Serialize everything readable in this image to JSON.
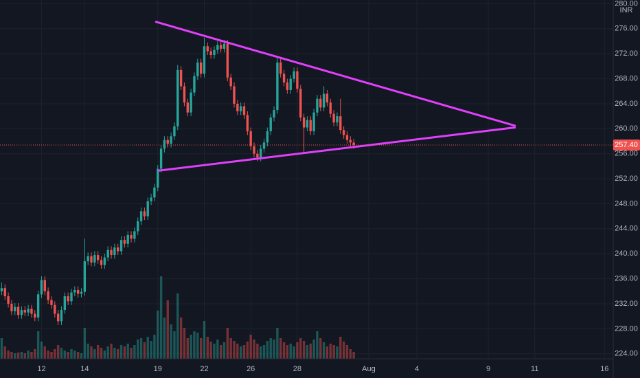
{
  "chart_data": {
    "type": "candlestick",
    "currency": "INR",
    "up_color": "#26a69a",
    "down_color": "#ef5350",
    "line_color": "#e040fb",
    "grid": true,
    "xlim": [
      -0.5,
      183.5
    ],
    "ylim": [
      223.2,
      280.6
    ],
    "xticks": [
      {
        "value": 12,
        "label": "12"
      },
      {
        "value": 25,
        "label": "14"
      },
      {
        "value": 47,
        "label": "19"
      },
      {
        "value": 61,
        "label": "22"
      },
      {
        "value": 75,
        "label": "26"
      },
      {
        "value": 89,
        "label": "28"
      },
      {
        "value": 110.5,
        "label": "Aug"
      },
      {
        "value": 125,
        "label": "4"
      },
      {
        "value": 146.5,
        "label": "9"
      },
      {
        "value": 160.5,
        "label": "11"
      },
      {
        "value": 181.5,
        "label": "16"
      }
    ],
    "yticks": [
      {
        "value": 224,
        "label": "224.00"
      },
      {
        "value": 228,
        "label": "228.00"
      },
      {
        "value": 232,
        "label": "232.00"
      },
      {
        "value": 236,
        "label": "236.00"
      },
      {
        "value": 240,
        "label": "240.00"
      },
      {
        "value": 244,
        "label": "244.00"
      },
      {
        "value": 248,
        "label": "248.00"
      },
      {
        "value": 252,
        "label": "252.00"
      },
      {
        "value": 256,
        "label": "256.00"
      },
      {
        "value": 260,
        "label": "260.00"
      },
      {
        "value": 264,
        "label": "264.00"
      },
      {
        "value": 268,
        "label": "268.00"
      },
      {
        "value": 272,
        "label": "272.00"
      },
      {
        "value": 276,
        "label": "276.00"
      },
      {
        "value": 280,
        "label": "280.00"
      }
    ],
    "last_price": {
      "value": 257.4,
      "label": "257.40"
    },
    "trendlines": [
      {
        "x": [
          46.5,
          154.5
        ],
        "y": [
          277.1,
          260.5
        ]
      },
      {
        "x": [
          47.3,
          154.5
        ],
        "y": [
          253.3,
          260.2
        ]
      }
    ],
    "x": [
      0,
      1,
      2,
      3,
      4,
      5,
      6,
      7,
      8,
      9,
      10,
      11,
      12,
      13,
      14,
      15,
      16,
      17,
      18,
      19,
      20,
      21,
      22,
      23,
      24,
      25,
      26,
      27,
      28,
      29,
      30,
      31,
      32,
      33,
      34,
      35,
      36,
      37,
      38,
      39,
      40,
      41,
      42,
      43,
      44,
      45,
      46,
      47,
      48,
      49,
      50,
      51,
      52,
      53,
      54,
      55,
      56,
      57,
      58,
      59,
      60,
      61,
      62,
      63,
      64,
      65,
      66,
      67,
      68,
      69,
      70,
      71,
      72,
      73,
      74,
      75,
      76,
      77,
      78,
      79,
      80,
      81,
      82,
      83,
      84,
      85,
      86,
      87,
      88,
      89,
      90,
      91,
      92,
      93,
      94,
      95,
      96,
      97,
      98,
      99,
      100,
      101,
      102,
      103,
      104,
      105,
      106
    ],
    "open": [
      234.0,
      234.5,
      233.2,
      232.0,
      230.8,
      231.5,
      230.2,
      231.0,
      230.6,
      231.2,
      230.4,
      229.8,
      233.5,
      235.8,
      234.0,
      232.6,
      231.8,
      230.4,
      229.2,
      231.0,
      233.2,
      232.4,
      233.8,
      234.2,
      233.6,
      233.9,
      238.8,
      239.6,
      238.6,
      239.8,
      239.0,
      238.2,
      239.4,
      240.6,
      239.8,
      241.0,
      240.4,
      242.2,
      241.6,
      243.0,
      242.4,
      243.6,
      245.2,
      246.8,
      246.0,
      248.4,
      249.0,
      250.6,
      253.6,
      256.8,
      258.2,
      257.6,
      258.8,
      260.4,
      269.4,
      266.8,
      264.2,
      262.6,
      265.8,
      268.4,
      270.6,
      268.8,
      273.2,
      272.4,
      271.8,
      272.6,
      273.4,
      272.8,
      273.6,
      268.2,
      266.8,
      264.0,
      262.8,
      263.6,
      262.2,
      259.6,
      257.2,
      256.0,
      255.4,
      256.8,
      257.8,
      259.6,
      261.8,
      263.0,
      270.6,
      268.8,
      267.4,
      266.2,
      268.0,
      269.2,
      266.4,
      261.8,
      260.2,
      261.4,
      259.6,
      262.6,
      264.8,
      263.4,
      265.6,
      264.2,
      262.4,
      261.0,
      262.0,
      259.8,
      259.0,
      258.2,
      257.8
    ],
    "high": [
      235.4,
      235.1,
      233.8,
      232.6,
      232.1,
      232.1,
      231.6,
      231.6,
      231.8,
      231.8,
      231.0,
      234.1,
      236.4,
      236.4,
      234.6,
      233.2,
      232.4,
      231.0,
      231.6,
      233.8,
      233.8,
      234.4,
      234.8,
      234.8,
      234.5,
      242.4,
      240.2,
      240.2,
      240.4,
      240.4,
      239.6,
      240.0,
      241.2,
      241.2,
      241.6,
      241.6,
      242.8,
      242.8,
      243.6,
      243.6,
      244.2,
      245.8,
      247.4,
      247.4,
      249.0,
      249.6,
      251.2,
      254.2,
      257.4,
      258.8,
      258.8,
      259.4,
      261.0,
      270.2,
      270.0,
      267.4,
      264.8,
      266.4,
      269.0,
      271.2,
      271.2,
      274.6,
      273.8,
      273.0,
      273.2,
      274.0,
      274.0,
      274.2,
      274.2,
      268.8,
      267.4,
      264.6,
      264.2,
      264.2,
      262.8,
      260.2,
      257.8,
      256.6,
      257.4,
      258.4,
      260.2,
      262.4,
      263.6,
      271.4,
      271.2,
      269.4,
      268.0,
      268.6,
      269.8,
      269.8,
      267.0,
      262.4,
      262.0,
      262.0,
      263.2,
      265.4,
      265.4,
      266.8,
      266.2,
      264.8,
      263.0,
      262.6,
      264.8,
      260.4,
      259.6,
      258.8,
      258.4
    ],
    "low": [
      233.4,
      232.6,
      231.4,
      230.2,
      230.2,
      229.6,
      229.6,
      230.0,
      230.0,
      229.8,
      229.2,
      229.2,
      232.9,
      233.4,
      232.0,
      231.2,
      229.8,
      228.6,
      228.6,
      230.4,
      231.8,
      231.8,
      233.2,
      233.0,
      233.0,
      233.3,
      238.2,
      238.0,
      238.0,
      238.4,
      237.6,
      237.6,
      238.8,
      239.2,
      239.2,
      239.8,
      239.8,
      241.0,
      241.0,
      241.8,
      241.8,
      243.0,
      244.6,
      245.4,
      245.4,
      247.8,
      248.4,
      250.0,
      253.0,
      256.2,
      257.0,
      257.0,
      258.2,
      259.8,
      266.2,
      263.6,
      262.0,
      262.0,
      265.2,
      267.8,
      268.2,
      268.2,
      271.8,
      271.2,
      271.2,
      272.0,
      272.2,
      272.2,
      267.6,
      266.2,
      263.4,
      262.2,
      262.2,
      261.6,
      259.0,
      256.6,
      255.4,
      254.8,
      254.8,
      256.2,
      257.2,
      259.0,
      261.2,
      262.4,
      268.2,
      266.8,
      265.6,
      265.6,
      267.4,
      265.8,
      261.2,
      256.0,
      259.6,
      259.0,
      259.0,
      262.0,
      262.8,
      262.8,
      263.6,
      261.8,
      260.4,
      260.4,
      259.2,
      258.4,
      257.6,
      257.2,
      256.8
    ],
    "close": [
      234.5,
      233.2,
      232.0,
      230.8,
      231.5,
      230.2,
      231.0,
      230.6,
      231.2,
      230.4,
      229.8,
      233.5,
      235.8,
      234.0,
      232.6,
      231.8,
      230.4,
      229.2,
      231.0,
      233.2,
      232.4,
      233.8,
      234.2,
      233.6,
      233.9,
      238.8,
      239.6,
      238.6,
      239.8,
      239.0,
      238.2,
      239.4,
      240.6,
      239.8,
      241.0,
      240.4,
      242.2,
      241.6,
      243.0,
      242.4,
      243.6,
      245.2,
      246.8,
      246.0,
      248.4,
      249.0,
      250.6,
      253.6,
      256.8,
      258.2,
      257.6,
      258.8,
      260.4,
      269.4,
      266.8,
      264.2,
      262.6,
      265.8,
      268.4,
      270.6,
      268.8,
      273.2,
      272.4,
      271.8,
      272.6,
      273.4,
      272.8,
      273.6,
      268.2,
      266.8,
      264.0,
      262.8,
      263.6,
      262.2,
      259.6,
      257.2,
      256.0,
      255.4,
      256.8,
      257.8,
      259.6,
      261.8,
      263.0,
      270.6,
      268.8,
      267.4,
      266.2,
      268.0,
      269.2,
      266.4,
      261.8,
      260.2,
      261.4,
      259.6,
      262.6,
      264.8,
      263.4,
      265.6,
      264.2,
      262.4,
      261.0,
      262.0,
      259.8,
      259.0,
      258.2,
      257.8,
      257.4
    ],
    "volume": [
      30,
      18,
      12,
      10,
      8,
      9,
      10,
      8,
      12,
      10,
      14,
      40,
      25,
      18,
      12,
      10,
      14,
      20,
      16,
      12,
      10,
      14,
      12,
      10,
      8,
      45,
      22,
      18,
      14,
      20,
      16,
      12,
      18,
      22,
      16,
      14,
      20,
      18,
      22,
      16,
      20,
      28,
      30,
      24,
      32,
      26,
      35,
      70,
      120,
      60,
      85,
      50,
      40,
      95,
      60,
      45,
      30,
      35,
      40,
      38,
      30,
      55,
      32,
      25,
      22,
      28,
      20,
      24,
      45,
      30,
      26,
      22,
      18,
      20,
      25,
      35,
      28,
      22,
      18,
      20,
      26,
      30,
      28,
      45,
      30,
      24,
      20,
      22,
      18,
      24,
      30,
      26,
      20,
      22,
      28,
      40,
      30,
      24,
      18,
      22,
      20,
      18,
      32,
      25,
      20,
      14,
      10
    ]
  }
}
